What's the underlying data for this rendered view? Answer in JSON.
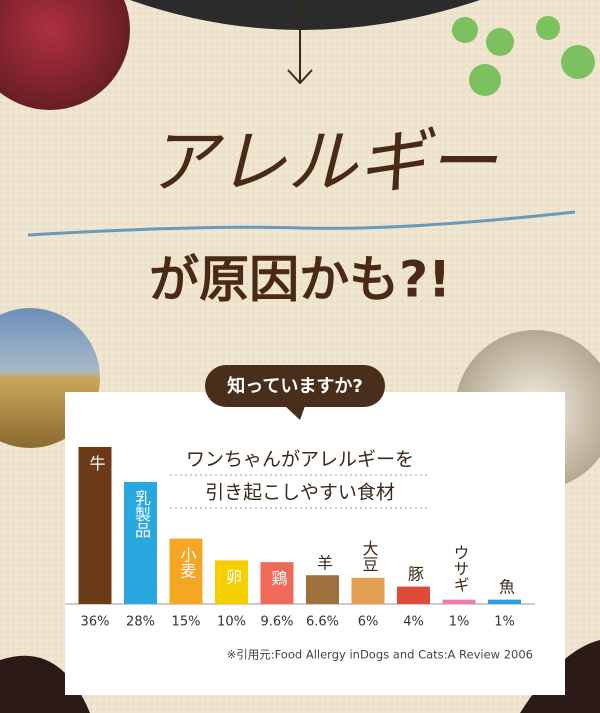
{
  "header": {
    "title": "アレルギー",
    "subtitle": "が原因かも?!",
    "badge": "知っていますか?"
  },
  "chart_data": {
    "type": "bar",
    "title": "ワンちゃんがアレルギーを",
    "subtitle": "引き起こしやすい食材",
    "source": "※引用元:Food Allergy inDogs and Cats:A Review 2006",
    "categories": [
      "牛",
      "乳製品",
      "小麦",
      "卵",
      "鶏",
      "羊",
      "大豆",
      "豚",
      "ウサギ",
      "魚"
    ],
    "values": [
      36,
      28,
      15,
      10,
      9.6,
      6.6,
      6,
      4,
      1,
      1
    ],
    "value_labels": [
      "36%",
      "28%",
      "15%",
      "10%",
      "9.6%",
      "6.6%",
      "6%",
      "4%",
      "1%",
      "1%"
    ],
    "colors": [
      "#6b3a17",
      "#29a8e0",
      "#f5a623",
      "#f5d000",
      "#f06a5a",
      "#a0703f",
      "#e0a050",
      "#e04a3a",
      "#f07bb0",
      "#2aa0d8"
    ]
  }
}
